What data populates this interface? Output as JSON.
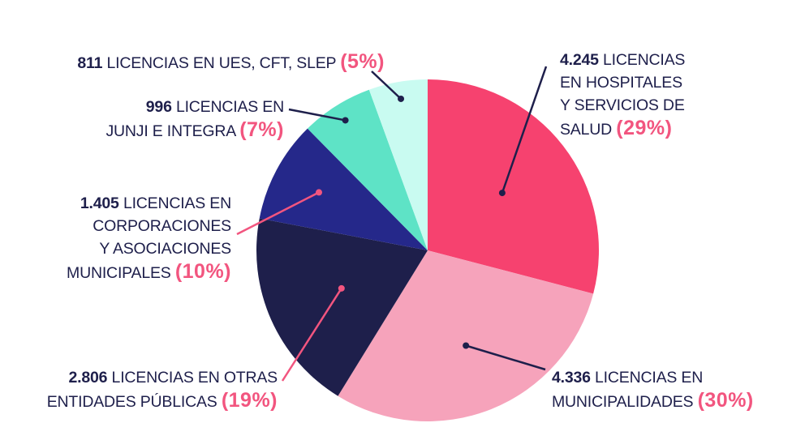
{
  "chart_data": {
    "type": "pie",
    "start_angle": "top",
    "direction": "clockwise",
    "colors": {
      "hospitales": "#f6426f",
      "municipalidades": "#f6a3bb",
      "otras": "#1e1f4b",
      "corporaciones": "#25288a",
      "junji": "#5ee3c6",
      "ues": "#c9fbf1",
      "leader_pink": "#f2557f",
      "leader_dark": "#1e1f4b",
      "pct_text": "#f2557f"
    },
    "slices": [
      {
        "key": "hospitales",
        "value": 4245,
        "percent": 29,
        "number_text": "4.245",
        "label_lines": [
          "LICENCIAS",
          "EN HOSPITALES",
          "Y SERVICIOS DE",
          "SALUD"
        ],
        "percent_text": "(29%)"
      },
      {
        "key": "municipalidades",
        "value": 4336,
        "percent": 30,
        "number_text": "4.336",
        "label_lines": [
          "LICENCIAS EN",
          "MUNICIPALIDADES"
        ],
        "percent_text": "(30%)"
      },
      {
        "key": "otras",
        "value": 2806,
        "percent": 19,
        "number_text": "2.806",
        "label_lines": [
          "LICENCIAS EN OTRAS",
          "ENTIDADES PÚBLICAS"
        ],
        "percent_text": "(19%)"
      },
      {
        "key": "corporaciones",
        "value": 1405,
        "percent": 10,
        "number_text": "1.405",
        "label_lines": [
          "LICENCIAS EN",
          "CORPORACIONES",
          "Y ASOCIACIONES",
          "MUNICIPALES"
        ],
        "percent_text": "(10%)"
      },
      {
        "key": "junji",
        "value": 996,
        "percent": 7,
        "number_text": "996",
        "label_lines": [
          "LICENCIAS EN",
          "JUNJI E INTEGRA"
        ],
        "percent_text": "(7%)"
      },
      {
        "key": "ues",
        "value": 811,
        "percent": 5,
        "number_text": "811",
        "label_lines": [
          "LICENCIAS EN UES, CFT, SLEP"
        ],
        "percent_text": "(5%)"
      }
    ]
  }
}
